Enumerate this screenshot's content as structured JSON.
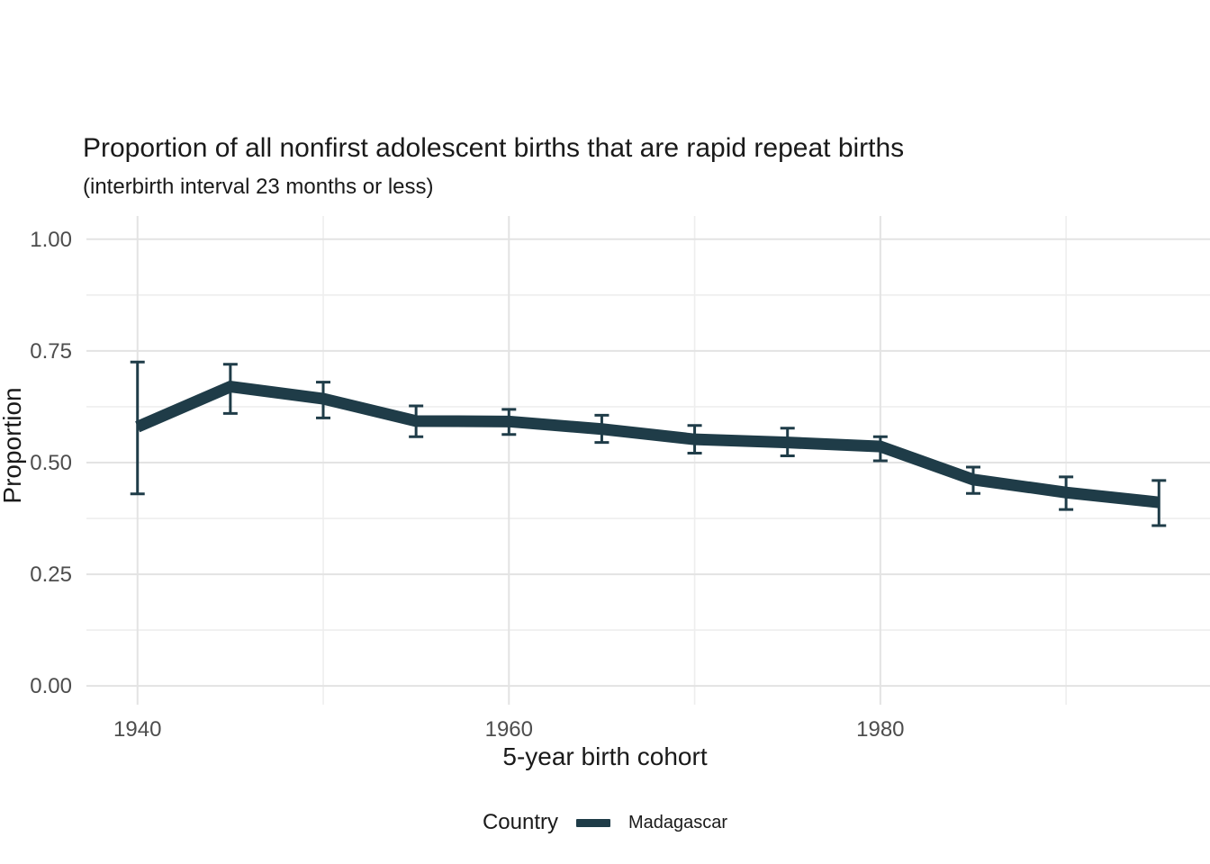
{
  "chart": {
    "title": "Proportion of all nonfirst adolescent births that are rapid repeat births",
    "subtitle": "(interbirth interval 23 months or less)",
    "xlabel": "5-year birth cohort",
    "ylabel": "Proportion"
  },
  "legend": {
    "title": "Country",
    "items": [
      {
        "label": "Madagascar",
        "color": "#1f3c48",
        "swatch": "line-swatch"
      }
    ]
  },
  "colors": {
    "series": "#1f3c48",
    "grid_major": "#e3e3e3",
    "grid_minor": "#eeeeee",
    "tick_text": "#4d4d4d",
    "title_text": "#1a1a1a",
    "background": "#ffffff"
  },
  "chart_data": {
    "type": "line",
    "title": "Proportion of all nonfirst adolescent births that are rapid repeat births",
    "subtitle": "(interbirth interval 23 months or less)",
    "xlabel": "5-year birth cohort",
    "ylabel": "Proportion",
    "legend_title": "Country",
    "legend_position": "bottom",
    "grid": true,
    "error_bars": true,
    "xlim": [
      1937.25,
      1997.75
    ],
    "ylim": [
      -0.042,
      1.052
    ],
    "x_ticks": [
      1940,
      1960,
      1980
    ],
    "x_tick_labels": [
      "1940",
      "1960",
      "1980"
    ],
    "x_minor_gridlines": [
      1950,
      1970,
      1990
    ],
    "y_ticks": [
      0.0,
      0.25,
      0.5,
      0.75,
      1.0
    ],
    "y_tick_labels": [
      "0.00",
      "0.25",
      "0.50",
      "0.75",
      "1.00"
    ],
    "y_minor_gridlines": [
      0.125,
      0.375,
      0.625,
      0.875
    ],
    "series": [
      {
        "name": "Madagascar",
        "color": "#1f3c48",
        "x": [
          1940,
          1945,
          1950,
          1955,
          1960,
          1965,
          1970,
          1975,
          1980,
          1985,
          1990,
          1995
        ],
        "y": [
          0.58,
          0.67,
          0.643,
          0.593,
          0.592,
          0.575,
          0.552,
          0.545,
          0.536,
          0.462,
          0.433,
          0.411
        ],
        "y_lower": [
          0.43,
          0.61,
          0.6,
          0.558,
          0.563,
          0.545,
          0.521,
          0.515,
          0.504,
          0.431,
          0.395,
          0.359
        ],
        "y_upper": [
          0.725,
          0.72,
          0.68,
          0.627,
          0.619,
          0.606,
          0.583,
          0.577,
          0.558,
          0.49,
          0.468,
          0.46
        ]
      }
    ]
  }
}
